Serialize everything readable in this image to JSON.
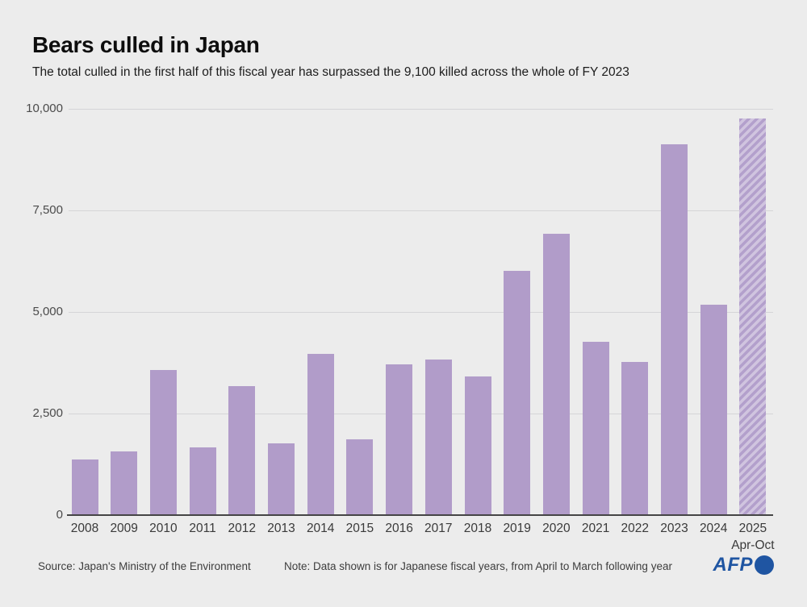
{
  "header": {
    "title": "Bears culled in Japan",
    "subtitle": "The total culled in the first half of this fiscal year has surpassed the 9,100 killed across the whole of FY 2023"
  },
  "chart_data": {
    "type": "bar",
    "title": "Bears culled in Japan",
    "xlabel": "",
    "ylabel": "",
    "categories": [
      "2008",
      "2009",
      "2010",
      "2011",
      "2012",
      "2013",
      "2014",
      "2015",
      "2016",
      "2017",
      "2018",
      "2019",
      "2020",
      "2021",
      "2022",
      "2023",
      "2024",
      "2025"
    ],
    "values": [
      1350,
      1550,
      3550,
      1650,
      3150,
      1750,
      3950,
      1850,
      3700,
      3800,
      3400,
      6000,
      6900,
      4250,
      3750,
      9100,
      5150,
      9750
    ],
    "last_bar_sublabel": "Apr-Oct",
    "last_bar_style": "hatched",
    "ylim": [
      0,
      10000
    ],
    "yticks": [
      0,
      2500,
      5000,
      7500,
      10000
    ],
    "ytick_labels": [
      "0",
      "2,500",
      "5,000",
      "7,500",
      "10,000"
    ],
    "grid": true,
    "legend": "none",
    "bar_color": "#b19cc9",
    "hatch_colors": [
      "#b3a0cc",
      "#d0c4df"
    ]
  },
  "footer": {
    "source": "Source: Japan's Ministry of the Environment",
    "note": "Note: Data shown is for Japanese fiscal years, from April to March following year",
    "logo": "AFP"
  },
  "icons": {
    "afp_globe": "globe-circle-icon"
  },
  "colors": {
    "background": "#ececec",
    "gridline": "#d5d5d7",
    "axis_line": "#454545",
    "afp_blue": "#1f55a2"
  }
}
